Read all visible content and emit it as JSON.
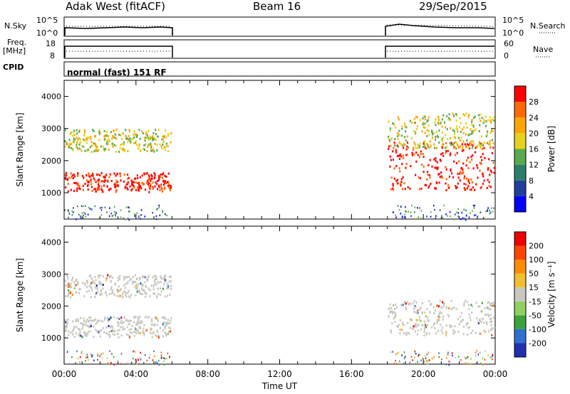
{
  "header": {
    "radar": "Adak West (fitACF)",
    "beam": "Beam 16",
    "date": "29/Sep/2015"
  },
  "panels": {
    "nsky": {
      "label": "N.Sky",
      "ticks": [
        "10^5",
        "10^0"
      ]
    },
    "nsearch": {
      "label": "N.Search",
      "ticks": [
        "10^5",
        "10^0"
      ]
    },
    "freq": {
      "label_line1": "Freq.",
      "label_line2": "[MHz]",
      "ticks": [
        "18",
        "8"
      ]
    },
    "nave": {
      "label": "Nave",
      "ticks": [
        "60",
        "0"
      ]
    },
    "cpid": {
      "label": "CPID",
      "value": "normal (fast) 151 RF"
    }
  },
  "chart_data": [
    {
      "type": "heatmap",
      "name": "power",
      "ylabel": "Slant Range [km]",
      "xlabel": "",
      "ylim": [
        180,
        4500
      ],
      "yticks": [
        "1000",
        "2000",
        "3000",
        "4000"
      ],
      "colorbar_label": "Power [dB]",
      "colorbar_ticks": [
        "4",
        "8",
        "12",
        "16",
        "20",
        "24",
        "28"
      ],
      "colors": [
        "#0000ff",
        "#1f3f9f",
        "#2e7d6b",
        "#5aaa4e",
        "#e6d21e",
        "#ffa500",
        "#ff6a00",
        "#ff0000"
      ],
      "time_ranges_with_data": [
        [
          "00:00",
          "06:00"
        ],
        [
          "18:00",
          "24:00"
        ]
      ],
      "bands": [
        {
          "start": "00:00",
          "end": "06:00",
          "range_km": [
            1050,
            1650
          ],
          "color_level": "28+"
        },
        {
          "start": "00:00",
          "end": "06:00",
          "range_km": [
            2300,
            3000
          ],
          "color_level": "16-24"
        },
        {
          "start": "18:00",
          "end": "24:00",
          "range_km": [
            1100,
            2600
          ],
          "color_level": "20-28"
        },
        {
          "start": "18:00",
          "end": "24:00",
          "range_km": [
            2400,
            3500
          ],
          "color_level": "12-20"
        }
      ]
    },
    {
      "type": "heatmap",
      "name": "velocity",
      "ylabel": "Slant Range [km]",
      "xlabel": "Time UT",
      "ylim": [
        180,
        4500
      ],
      "yticks": [
        "1000",
        "2000",
        "3000",
        "4000"
      ],
      "colorbar_label": "Velocity [m s⁻¹]",
      "colorbar_ticks": [
        "200",
        "100",
        "50",
        "15",
        "-15",
        "-50",
        "-100",
        "-200"
      ],
      "colors": [
        "#2030b0",
        "#2f6fd0",
        "#3da23d",
        "#8fd060",
        "#c8c8c0",
        "#f0c030",
        "#ff8c00",
        "#ff4500",
        "#ee0000"
      ],
      "xticks": [
        "00:00",
        "04:00",
        "08:00",
        "12:00",
        "16:00",
        "20:00",
        "00:00"
      ],
      "bands": [
        {
          "start": "00:00",
          "end": "06:00",
          "range_km": [
            1050,
            1700
          ],
          "color_level": "-15 to 15 (ground scatter)"
        },
        {
          "start": "00:00",
          "end": "06:00",
          "range_km": [
            2300,
            3000
          ],
          "color_level": "-15 to 15 (ground scatter)"
        },
        {
          "start": "18:00",
          "end": "24:00",
          "range_km": [
            1100,
            2200
          ],
          "color_level": "-15 to 15 (ground scatter)"
        }
      ]
    }
  ]
}
